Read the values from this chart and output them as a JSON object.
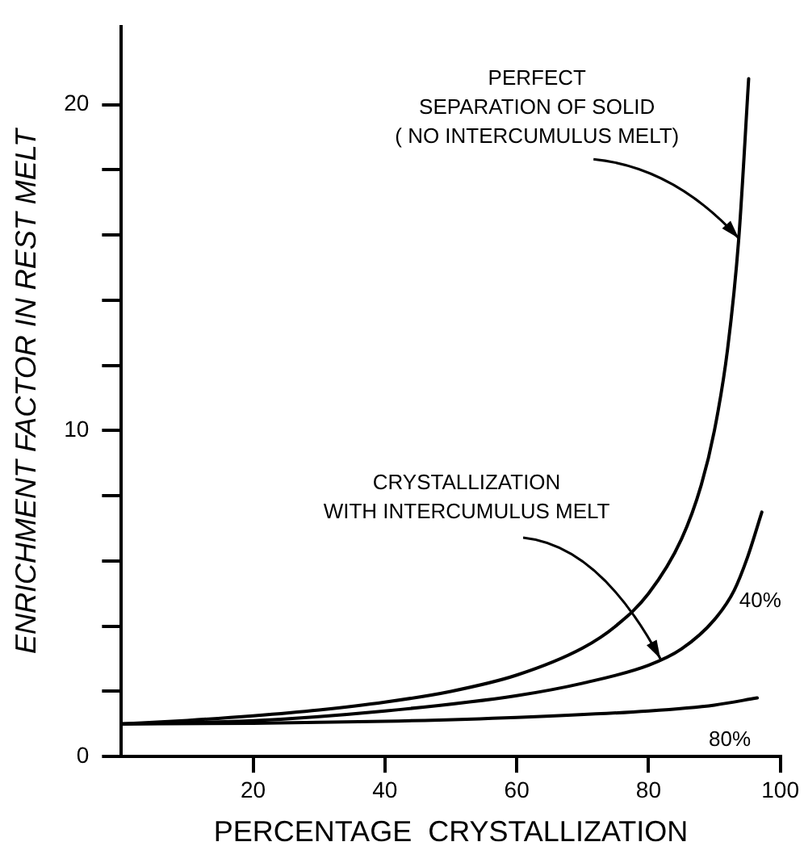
{
  "chart_data": {
    "type": "line",
    "xlabel": "PERCENTAGE  CRYSTALLIZATION",
    "ylabel": "ENRICHMENT FACTOR IN REST MELT",
    "xlim": [
      0,
      100
    ],
    "xticks": [
      20,
      40,
      60,
      80,
      100
    ],
    "ylim": [
      0,
      22.4
    ],
    "yticks": [
      0,
      {
        "value": 2,
        "label": null
      },
      {
        "value": 4,
        "label": null
      },
      {
        "value": 6,
        "label": null
      },
      {
        "value": 8,
        "label": null
      },
      10,
      {
        "value": 12,
        "label": null
      },
      {
        "value": 14,
        "label": null
      },
      {
        "value": 16,
        "label": null
      },
      {
        "value": 18,
        "label": null
      },
      20
    ],
    "grid": false,
    "legend": false,
    "marker": "none",
    "line_style": "solid",
    "series": [
      {
        "color": "#000000",
        "x": [
          0,
          10,
          20,
          30,
          40,
          50,
          60,
          70,
          75,
          80,
          85,
          88,
          90,
          92,
          93.7,
          95.2
        ],
        "values": [
          1,
          1.11,
          1.25,
          1.43,
          1.67,
          2,
          2.5,
          3.33,
          4,
          5,
          6.67,
          8.33,
          10,
          12.5,
          15.9,
          20.8
        ]
      },
      {
        "name": "40%",
        "color": "#000000",
        "x": [
          0,
          20,
          40,
          60,
          70,
          80,
          85,
          90,
          93,
          95,
          97.2
        ],
        "values": [
          1,
          1.1,
          1.4,
          1.87,
          2.25,
          2.8,
          3.3,
          4.2,
          5.1,
          6.1,
          7.5
        ]
      },
      {
        "name": "80%",
        "color": "#000000",
        "x": [
          0,
          20,
          40,
          60,
          80,
          90,
          96.5
        ],
        "values": [
          1,
          1.02,
          1.08,
          1.2,
          1.4,
          1.58,
          1.8
        ]
      }
    ],
    "annotations": [
      {
        "text": "PERFECT\nSEPARATION OF SOLID\n( NO INTERCUMULUS MELT)",
        "x": 93.7,
        "y": 15.9
      },
      {
        "text": "CRYSTALLIZATION\nWITH INTERCUMULUS MELT",
        "x": 81.8,
        "y": 3.0
      }
    ]
  }
}
